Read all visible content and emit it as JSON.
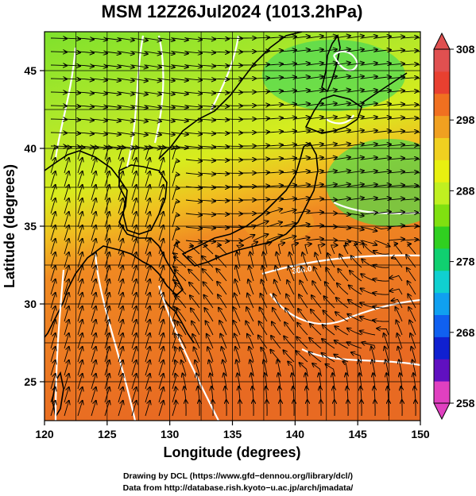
{
  "title": "MSM 12Z26Jul2024 (1013.2hPa)",
  "x_axis": {
    "label": "Longitude (degrees)",
    "range": [
      120,
      150
    ],
    "ticks": [
      120,
      125,
      130,
      135,
      140,
      145,
      150
    ]
  },
  "y_axis": {
    "label": "Latitude  (degrees)",
    "range": [
      22.5,
      47.5
    ],
    "ticks": [
      25,
      30,
      35,
      40,
      45
    ]
  },
  "colorbar": {
    "range": [
      258,
      308
    ],
    "ticks": [
      258,
      268,
      278,
      288,
      298,
      308
    ],
    "colors": [
      "#e040c0",
      "#6010c0",
      "#1020d0",
      "#1060f0",
      "#10a0f0",
      "#10d0d0",
      "#10d070",
      "#30d020",
      "#80e010",
      "#c0f020",
      "#e8f010",
      "#f0d020",
      "#f0a020",
      "#f07020",
      "#e84030",
      "#e05050"
    ]
  },
  "contour_label": "300.0",
  "credits": {
    "line1": "Drawing by DCL (https://www.gfd−dennou.org/library/dcl/)",
    "line2": "Data from http://database.rish.kyoto−u.ac.jp/arch/jmadata/"
  }
}
